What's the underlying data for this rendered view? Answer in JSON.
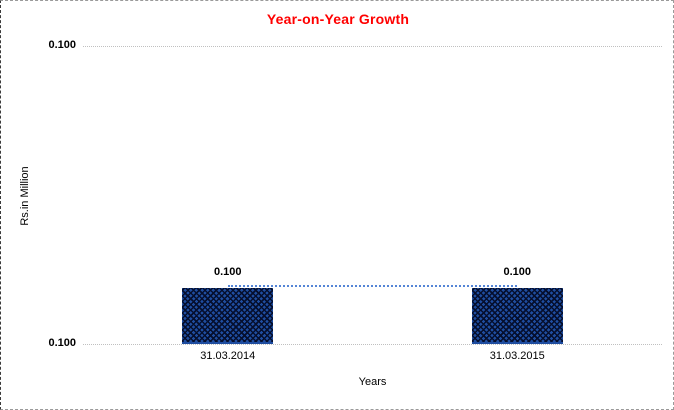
{
  "chart_data": {
    "type": "bar",
    "title": "Year-on-Year Growth",
    "categories": [
      "31.03.2014",
      "31.03.2015"
    ],
    "series": [
      {
        "name": "bars",
        "type": "bar",
        "values": [
          0.1,
          0.1
        ]
      },
      {
        "name": "trend",
        "type": "line",
        "values": [
          0.1,
          0.1
        ]
      }
    ],
    "value_labels": [
      "0.100",
      "0.100"
    ],
    "yticks": {
      "top": "0.100",
      "bottom": "0.100"
    },
    "xlabel": "Years",
    "ylabel": "Rs.in Million",
    "legend": "none",
    "grid": "horizontal-dotted",
    "colors": {
      "title": "#ff0000",
      "bar": "#1f4da0",
      "bar_pattern": "#050f2e",
      "trend": "#5585d6",
      "gridline": "#c0c0c0",
      "text": "#000000",
      "background": "#ffffff"
    }
  }
}
